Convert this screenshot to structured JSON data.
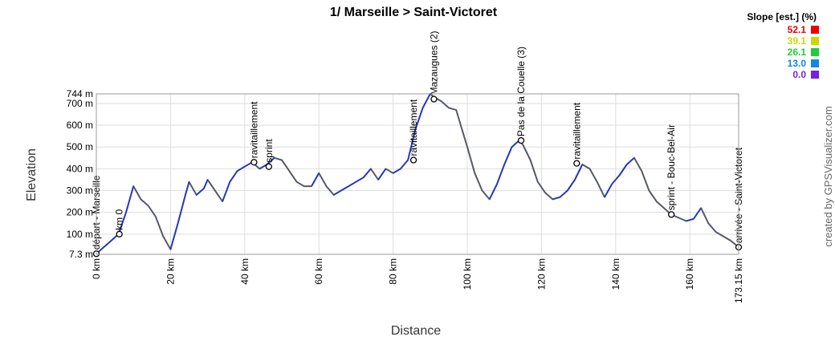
{
  "chart_data": {
    "type": "area",
    "title": "1/ Marseille > Saint-Victoret",
    "xlabel": "Distance",
    "ylabel": "Elevation",
    "xlim": [
      0,
      173.15
    ],
    "ylim": [
      7.3,
      744
    ],
    "x_ticks": [
      {
        "value": 0,
        "label": "0 km"
      },
      {
        "value": 20,
        "label": "20 km"
      },
      {
        "value": 40,
        "label": "40 km"
      },
      {
        "value": 60,
        "label": "60 km"
      },
      {
        "value": 80,
        "label": "80 km"
      },
      {
        "value": 100,
        "label": "100 km"
      },
      {
        "value": 120,
        "label": "120 km"
      },
      {
        "value": 140,
        "label": "140 km"
      },
      {
        "value": 160,
        "label": "160 km"
      },
      {
        "value": 173.15,
        "label": "173.15 km"
      }
    ],
    "y_ticks": [
      {
        "value": 7.3,
        "label": "7.3 m"
      },
      {
        "value": 100,
        "label": "100 m"
      },
      {
        "value": 200,
        "label": "200 m"
      },
      {
        "value": 300,
        "label": "300 m"
      },
      {
        "value": 400,
        "label": "400 m"
      },
      {
        "value": 500,
        "label": "500 m"
      },
      {
        "value": 600,
        "label": "600 m"
      },
      {
        "value": 700,
        "label": "700 m"
      },
      {
        "value": 744,
        "label": "744 m"
      }
    ],
    "grid": true,
    "profile": {
      "x": [
        0,
        2,
        4,
        6,
        8,
        10,
        12,
        14,
        16,
        18,
        20,
        22,
        24,
        25,
        27,
        29,
        30,
        32,
        34,
        36,
        38,
        40,
        42,
        44,
        46,
        48,
        50,
        52,
        54,
        56,
        58,
        60,
        62,
        64,
        66,
        68,
        70,
        72,
        74,
        76,
        78,
        80,
        82,
        84,
        86,
        88,
        90,
        91,
        93,
        95,
        97,
        100,
        102,
        104,
        106,
        108,
        110,
        112,
        114,
        115,
        117,
        119,
        121,
        123,
        125,
        127,
        129,
        131,
        133,
        135,
        137,
        139,
        141,
        143,
        145,
        147,
        149,
        151,
        153,
        155,
        157,
        159,
        161,
        163,
        165,
        167,
        169,
        171,
        173.15
      ],
      "y": [
        10,
        40,
        70,
        100,
        200,
        320,
        260,
        230,
        180,
        90,
        30,
        150,
        280,
        340,
        280,
        310,
        350,
        300,
        250,
        340,
        390,
        410,
        430,
        400,
        420,
        450,
        440,
        390,
        340,
        320,
        320,
        380,
        320,
        280,
        300,
        320,
        340,
        360,
        400,
        350,
        400,
        380,
        400,
        440,
        580,
        680,
        744,
        730,
        710,
        680,
        670,
        500,
        380,
        300,
        260,
        330,
        420,
        500,
        530,
        510,
        440,
        340,
        290,
        260,
        270,
        300,
        350,
        420,
        400,
        340,
        270,
        330,
        370,
        420,
        450,
        390,
        300,
        250,
        220,
        190,
        175,
        160,
        170,
        220,
        150,
        110,
        90,
        70,
        40
      ]
    },
    "waypoints": [
      {
        "x": 0,
        "y": 10,
        "label": "départ - Marseille"
      },
      {
        "x": 6.2,
        "y": 100,
        "label": "km 0"
      },
      {
        "x": 42.5,
        "y": 430,
        "label": "ravitaillement"
      },
      {
        "x": 46.5,
        "y": 410,
        "label": "sprint"
      },
      {
        "x": 85.5,
        "y": 440,
        "label": "ravitaillement"
      },
      {
        "x": 91,
        "y": 720,
        "label": "Mazaugues (2)"
      },
      {
        "x": 114.5,
        "y": 530,
        "label": "Pas de la Couelle (3)"
      },
      {
        "x": 129.5,
        "y": 425,
        "label": "ravitaillement"
      },
      {
        "x": 155,
        "y": 190,
        "label": "sprint - Bouc-Bel-Air"
      },
      {
        "x": 173.15,
        "y": 40,
        "label": "arrivée - Saint-Victoret"
      }
    ],
    "legend": {
      "title": "Slope [est.] (%)",
      "position": "top-right",
      "items": [
        {
          "label": "52.1",
          "color": "#ee0000"
        },
        {
          "label": "39.1",
          "color": "#c8d800"
        },
        {
          "label": "26.1",
          "color": "#22cc33"
        },
        {
          "label": "13.0",
          "color": "#1188dd"
        },
        {
          "label": "0.0",
          "color": "#7722dd"
        }
      ]
    },
    "line_color": "#555a66",
    "slope_accent_color": "#2233cc"
  },
  "credit": "created by GPSVisualizer.com"
}
